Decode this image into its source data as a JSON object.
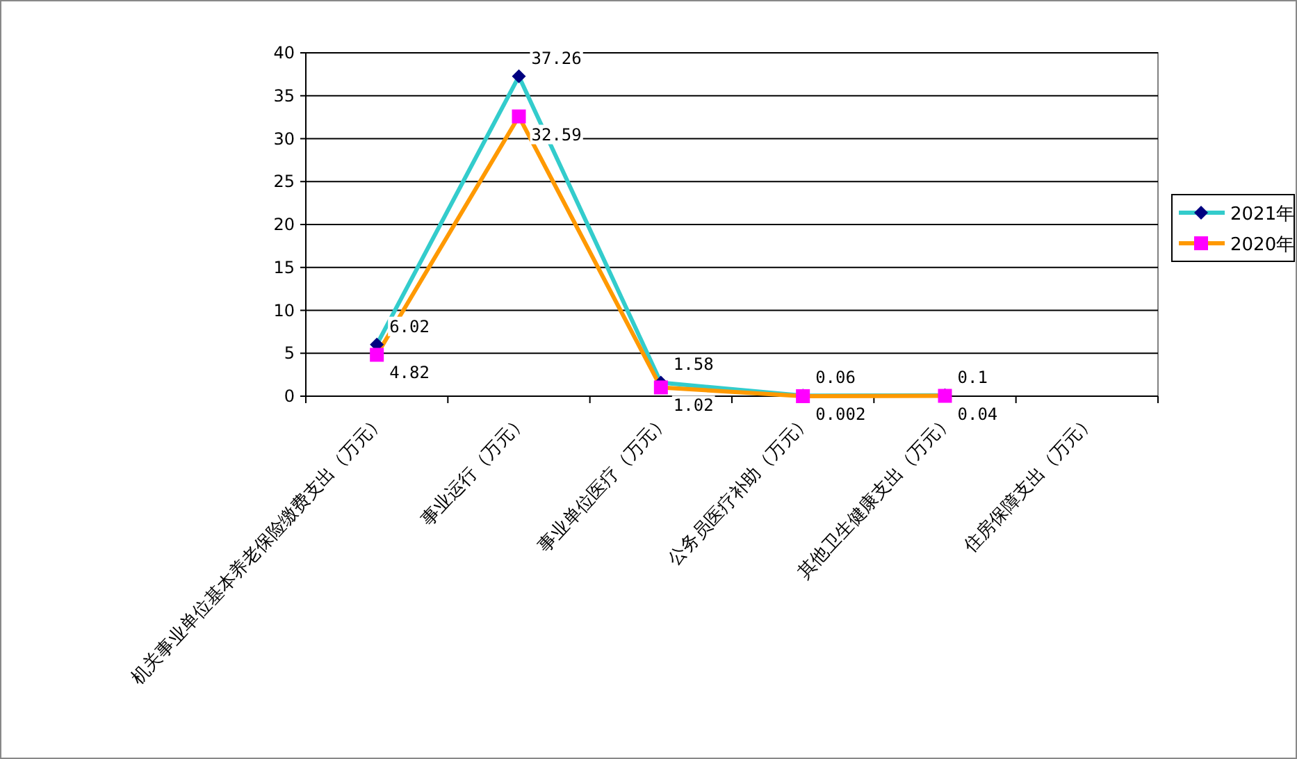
{
  "chart_data": {
    "type": "line",
    "categories": [
      "机关事业单位基本养老保险缴费支出（万元）",
      "事业运行（万元）",
      "事业单位医疗（万元）",
      "公务员医疗补助（万元）",
      "其他卫生健康支出（万元）",
      "住房保障支出（万元）"
    ],
    "series": [
      {
        "name": "2021年",
        "color": "#33cccc",
        "marker": "diamond",
        "values": [
          6.02,
          37.26,
          1.58,
          0.06,
          0.1,
          null
        ],
        "value_labels": [
          "6.02",
          "37.26",
          "1.58",
          "0.06",
          "0.1",
          null
        ]
      },
      {
        "name": "2020年",
        "color": "#ff9900",
        "marker": "square",
        "values": [
          4.82,
          32.59,
          1.02,
          0.002,
          0.04,
          null
        ],
        "value_labels": [
          "4.82",
          "32.59",
          "1.02",
          "0.002",
          "0.04",
          null
        ]
      }
    ],
    "ylim": [
      0,
      40
    ],
    "yticks": [
      0,
      5,
      10,
      15,
      20,
      25,
      30,
      35,
      40
    ],
    "grid": "y",
    "legend": "right"
  }
}
